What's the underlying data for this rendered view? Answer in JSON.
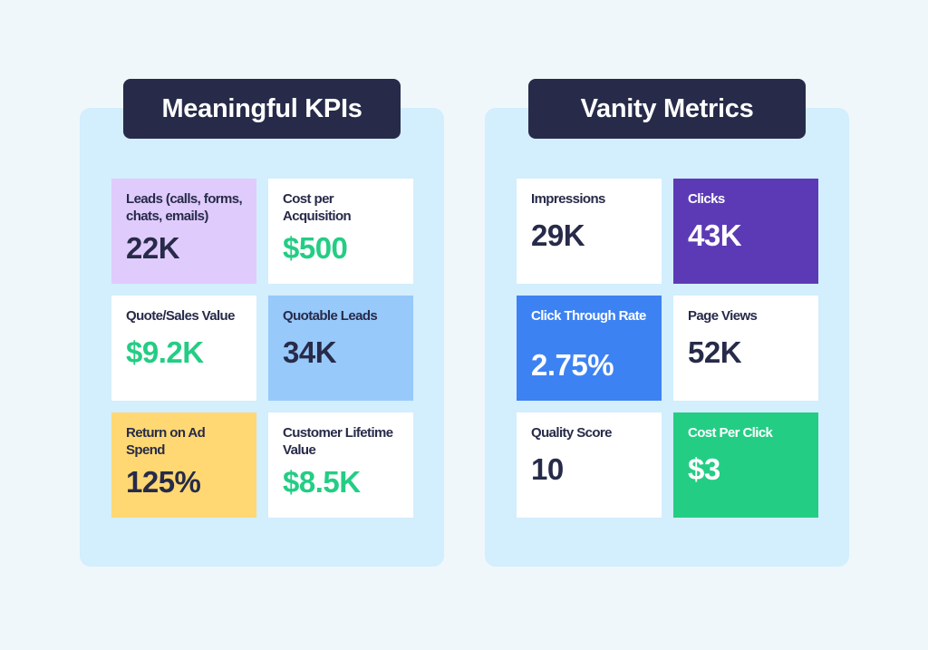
{
  "meaningful": {
    "title": "Meaningful KPIs",
    "cards": [
      {
        "label": "Leads (calls, forms, chats, emails)",
        "value": "22K"
      },
      {
        "label": "Cost per Acquisition",
        "value": "$500"
      },
      {
        "label": "Quote/Sales Value",
        "value": "$9.2K"
      },
      {
        "label": "Quotable Leads",
        "value": "34K"
      },
      {
        "label": "Return on Ad Spend",
        "value": "125%"
      },
      {
        "label": "Customer Lifetime Value",
        "value": "$8.5K"
      }
    ]
  },
  "vanity": {
    "title": "Vanity Metrics",
    "cards": [
      {
        "label": "Impressions",
        "value": "29K"
      },
      {
        "label": "Clicks",
        "value": "43K"
      },
      {
        "label": "Click Through Rate",
        "value": "2.75%"
      },
      {
        "label": "Page Views",
        "value": "52K"
      },
      {
        "label": "Quality Score",
        "value": "10"
      },
      {
        "label": "Cost Per Click",
        "value": "$3"
      }
    ]
  },
  "colors": {
    "background": "#eff7fb",
    "panel": "#d3eefd",
    "title_badge": "#272b49",
    "text_dark": "#272b49",
    "value_green": "#24cd84",
    "lavender": "#e0cbfd",
    "light_blue": "#97c9fb",
    "yellow": "#ffd873",
    "purple": "#5c3ab5",
    "blue": "#3d82f2",
    "green": "#24cd84"
  }
}
